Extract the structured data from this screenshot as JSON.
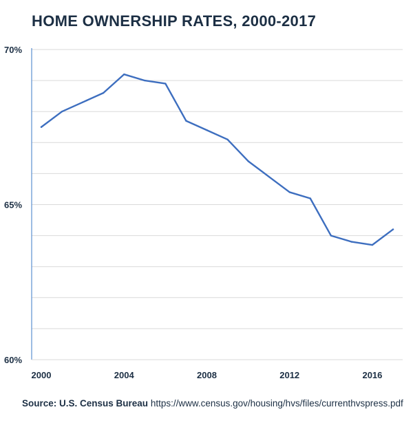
{
  "chart_data": {
    "type": "line",
    "title": "HOME OWNERSHIP RATES, 2000-2017",
    "xlabel": "",
    "ylabel": "",
    "x": [
      2000,
      2001,
      2002,
      2003,
      2004,
      2005,
      2006,
      2007,
      2008,
      2009,
      2010,
      2011,
      2012,
      2013,
      2014,
      2015,
      2016,
      2017
    ],
    "series": [
      {
        "values": [
          67.5,
          68.0,
          68.3,
          68.6,
          69.2,
          69.0,
          68.9,
          67.7,
          67.4,
          67.1,
          66.4,
          65.9,
          65.4,
          65.2,
          64.0,
          63.8,
          63.7,
          64.2
        ]
      }
    ],
    "xticks": [
      2000,
      2004,
      2008,
      2012,
      2016
    ],
    "xtick_labels": [
      "2000",
      "2004",
      "2008",
      "2012",
      "2016"
    ],
    "yticks": [
      60,
      65,
      70
    ],
    "ytick_labels": [
      "60%",
      "65%",
      "70%"
    ],
    "ylim": [
      60,
      70
    ],
    "xlim": [
      2000,
      2017
    ],
    "grid": true,
    "line_color": "#3d6ebf",
    "grid_color": "#d9d9d9",
    "axis_color": "#5b8fd0"
  },
  "source": {
    "label": "Source: U.S. Census Bureau",
    "url": "https://www.census.gov/housing/hvs/files/currenthvspress.pdf"
  }
}
